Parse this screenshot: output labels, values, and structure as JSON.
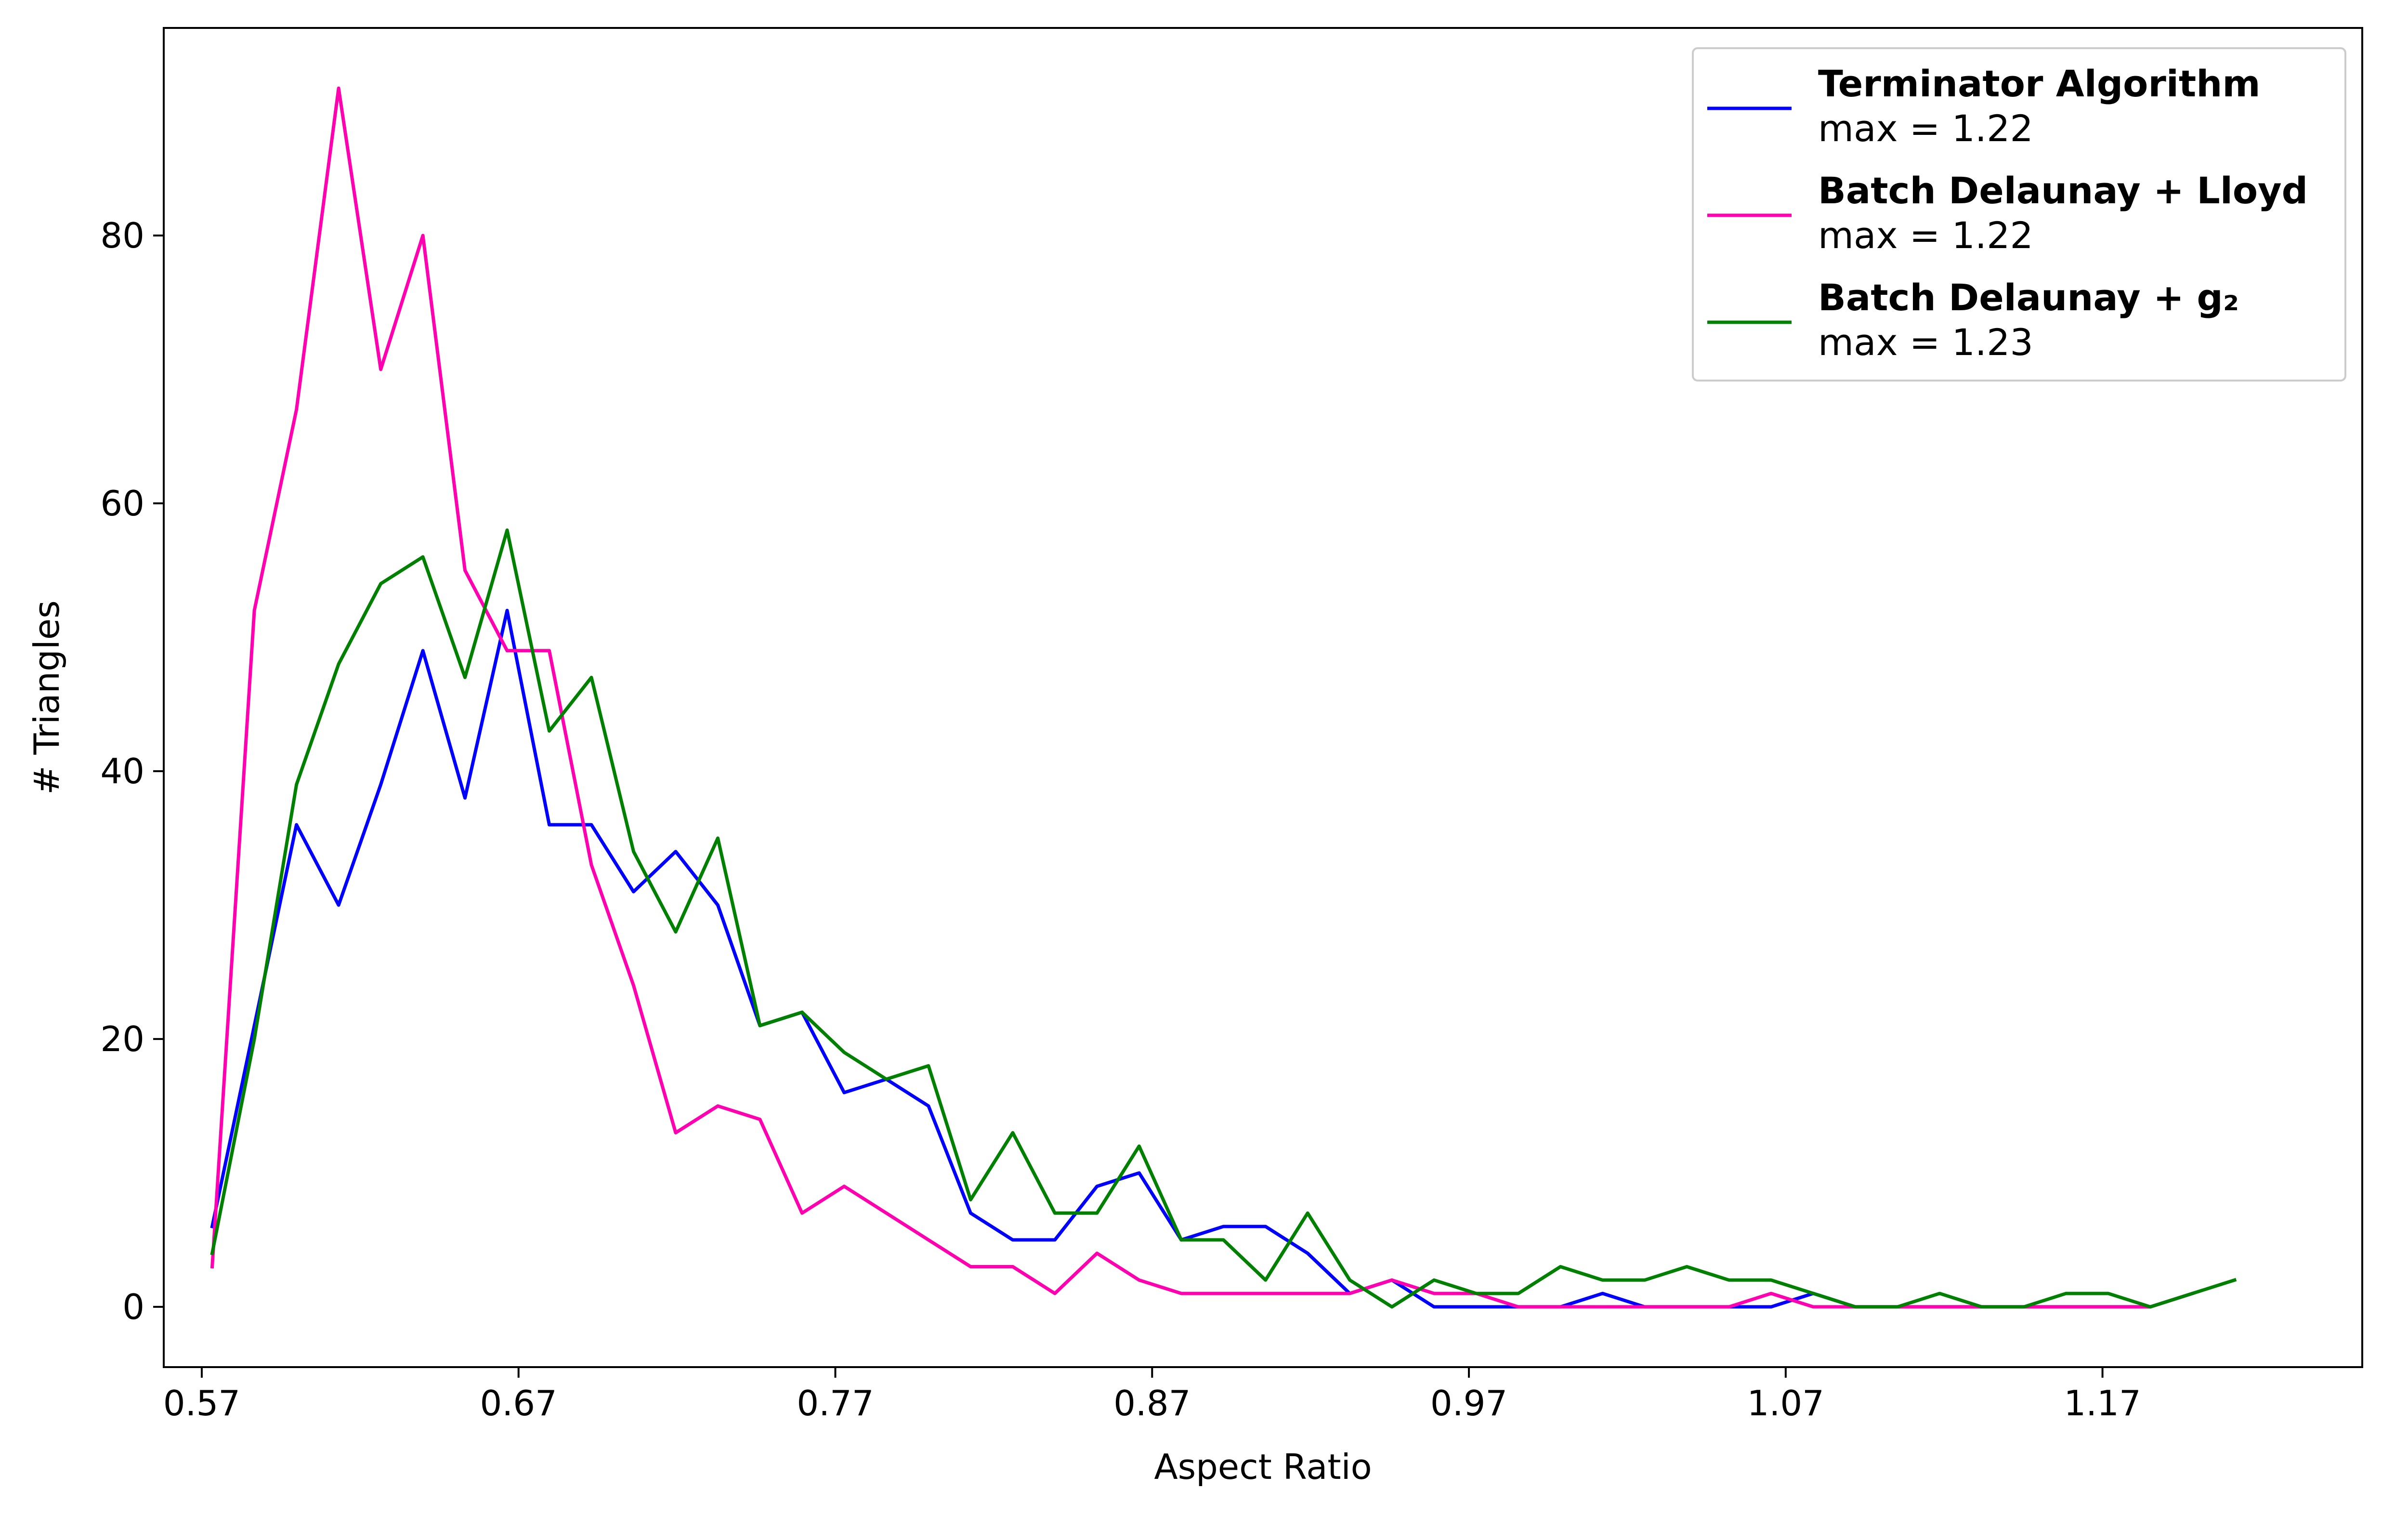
{
  "chart_data": {
    "type": "line",
    "title": "",
    "xlabel": "Aspect Ratio",
    "ylabel": "# Triangles",
    "xlim": [
      0.558,
      1.252
    ],
    "ylim": [
      -4.5,
      95.5
    ],
    "xticks": [
      0.57,
      0.67,
      0.77,
      0.87,
      0.97,
      1.07,
      1.17
    ],
    "xtick_labels": [
      "0.57",
      "0.67",
      "0.77",
      "0.87",
      "0.97",
      "1.07",
      "1.17"
    ],
    "yticks": [
      0,
      20,
      40,
      60,
      80
    ],
    "ytick_labels": [
      "0",
      "20",
      "40",
      "60",
      "80"
    ],
    "grid": false,
    "legend_position": "top-right",
    "series": [
      {
        "name": "Terminator Algorithm",
        "legend_stat": "max = 1.22",
        "color": "#0000ff",
        "x": [
          0.5733,
          0.5866,
          0.5999,
          0.6132,
          0.6265,
          0.6398,
          0.6531,
          0.6664,
          0.6797,
          0.693,
          0.7063,
          0.7196,
          0.7329,
          0.7462,
          0.7595,
          0.7728,
          0.7861,
          0.7994,
          0.8127,
          0.826,
          0.8393,
          0.8526,
          0.8659,
          0.8792,
          0.8925,
          0.9058,
          0.9191,
          0.9324,
          0.9457,
          0.959,
          0.9723,
          0.9856,
          0.9989,
          1.0122,
          1.0255,
          1.0388,
          1.0521,
          1.0654,
          1.0787,
          1.092,
          1.1053,
          1.1186,
          1.1319,
          1.1452,
          1.1585,
          1.1718,
          1.1851,
          1.1984
        ],
        "y": [
          6,
          21,
          36,
          30,
          39,
          49,
          38,
          52,
          36,
          36,
          31,
          34,
          30,
          21,
          22,
          16,
          17,
          15,
          7,
          5,
          5,
          9,
          10,
          5,
          6,
          6,
          4,
          1,
          2,
          0,
          0,
          0,
          0,
          1,
          0,
          0,
          0,
          0,
          1,
          0,
          0,
          0,
          0,
          0,
          0,
          0,
          0,
          1
        ]
      },
      {
        "name": "Batch Delaunay + Lloyd",
        "legend_stat": "max = 1.22",
        "color": "#ff00b0",
        "x": [
          0.5733,
          0.5866,
          0.5999,
          0.6132,
          0.6265,
          0.6398,
          0.6531,
          0.6664,
          0.6797,
          0.693,
          0.7063,
          0.7196,
          0.7329,
          0.7462,
          0.7595,
          0.7728,
          0.7861,
          0.7994,
          0.8127,
          0.826,
          0.8393,
          0.8526,
          0.8659,
          0.8792,
          0.8925,
          0.9058,
          0.9191,
          0.9324,
          0.9457,
          0.959,
          0.9723,
          0.9856,
          0.9989,
          1.0122,
          1.0255,
          1.0388,
          1.0521,
          1.0654,
          1.0787,
          1.092,
          1.1053,
          1.1186,
          1.1319,
          1.1452,
          1.1585,
          1.1718,
          1.1851,
          1.1984
        ],
        "y": [
          3,
          52,
          67,
          91,
          70,
          80,
          55,
          49,
          49,
          33,
          24,
          13,
          15,
          14,
          7,
          9,
          7,
          5,
          3,
          3,
          1,
          4,
          2,
          1,
          1,
          1,
          1,
          1,
          2,
          1,
          1,
          0,
          0,
          0,
          0,
          0,
          0,
          1,
          0,
          0,
          0,
          0,
          0,
          0,
          0,
          0,
          0,
          1
        ]
      },
      {
        "name": "Batch Delaunay + g₂",
        "legend_stat": "max = 1.23",
        "color": "#008000",
        "x": [
          0.5733,
          0.5866,
          0.5999,
          0.6132,
          0.6265,
          0.6398,
          0.6531,
          0.6664,
          0.6797,
          0.693,
          0.7063,
          0.7196,
          0.7329,
          0.7462,
          0.7595,
          0.7728,
          0.7861,
          0.7994,
          0.8127,
          0.826,
          0.8393,
          0.8526,
          0.8659,
          0.8792,
          0.8925,
          0.9058,
          0.9191,
          0.9324,
          0.9457,
          0.959,
          0.9723,
          0.9856,
          0.9989,
          1.0122,
          1.0255,
          1.0388,
          1.0521,
          1.0654,
          1.0787,
          1.092,
          1.1053,
          1.1186,
          1.1319,
          1.1452,
          1.1585,
          1.1718,
          1.1851,
          1.1984,
          1.2117
        ],
        "y": [
          4,
          20,
          39,
          48,
          54,
          56,
          47,
          58,
          43,
          47,
          34,
          28,
          35,
          21,
          22,
          19,
          17,
          18,
          8,
          13,
          7,
          7,
          12,
          5,
          5,
          2,
          7,
          2,
          0,
          2,
          1,
          1,
          3,
          2,
          2,
          3,
          2,
          2,
          1,
          0,
          0,
          1,
          0,
          0,
          1,
          1,
          0,
          1,
          2
        ]
      }
    ]
  }
}
